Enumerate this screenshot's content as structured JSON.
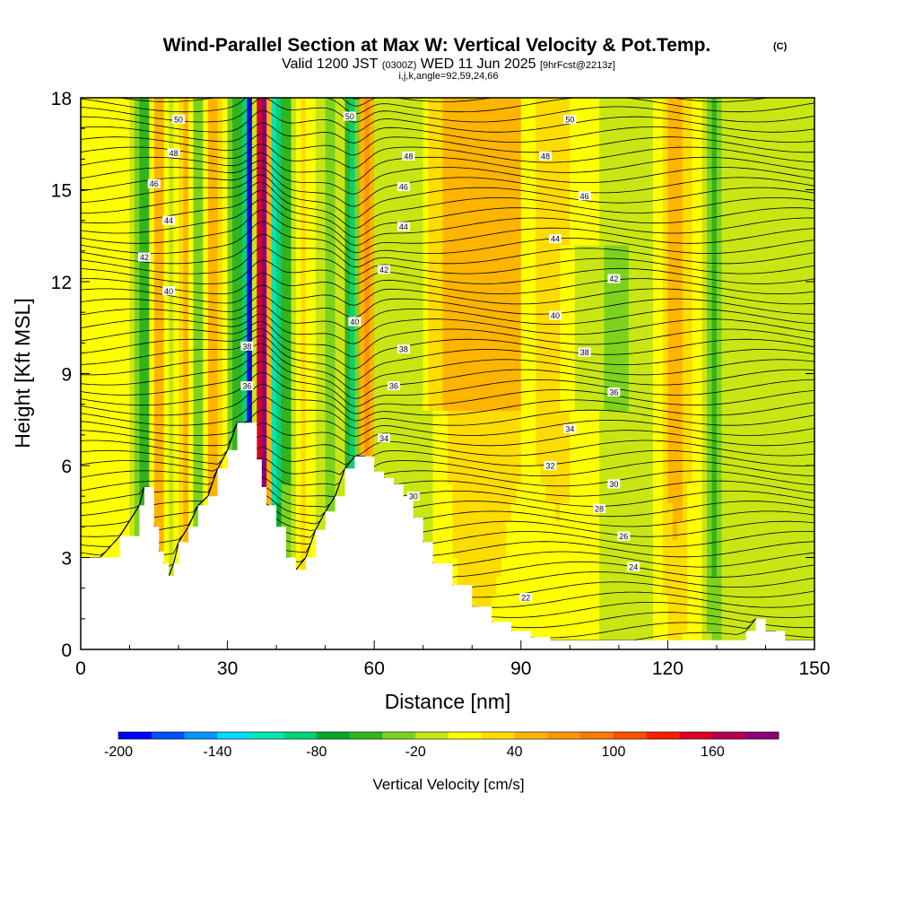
{
  "title": "Wind-Parallel Section at Max W: Vertical Velocity & Pot.Temp.",
  "copyright_mark": "(C)",
  "subtitle": {
    "valid": "Valid 1200 JST",
    "utc": "(0300Z)",
    "date": "WED 11 Jun 2025",
    "forecast": "[9hrFcst@2213z]"
  },
  "indices": "i,j,k,angle=92,59,24,66",
  "chart_data": {
    "type": "heatmap",
    "x_axis": {
      "label": "Distance [nm]",
      "range": [
        0,
        150
      ],
      "ticks": [
        0,
        30,
        60,
        90,
        120,
        150
      ]
    },
    "y_axis": {
      "label": "Height [Kft MSL]",
      "range": [
        0,
        18
      ],
      "ticks": [
        0,
        3,
        6,
        9,
        12,
        15,
        18
      ]
    },
    "colorbar": {
      "label": "Vertical Velocity [cm/s]",
      "tick_labels": [
        "-200",
        "-140",
        "-80",
        "-20",
        "40",
        "100",
        "160"
      ],
      "tick_values": [
        -200,
        -140,
        -80,
        -20,
        40,
        100,
        160
      ],
      "levels": [
        -200,
        -180,
        -160,
        -140,
        -120,
        -100,
        -80,
        -60,
        -40,
        -20,
        0,
        20,
        40,
        60,
        80,
        100,
        120,
        140,
        160,
        180,
        200
      ],
      "colors": [
        "#0000ff",
        "#0050ff",
        "#0096ff",
        "#00dcff",
        "#00e6b4",
        "#00d278",
        "#00aa28",
        "#32b41e",
        "#7dd21e",
        "#c8e614",
        "#ffff00",
        "#ffdc00",
        "#ffb400",
        "#ff9600",
        "#ff7800",
        "#ff5000",
        "#ff1e00",
        "#dc0028",
        "#b40050",
        "#8c0078"
      ]
    },
    "theta_contour_labels": [
      {
        "text": "50",
        "x": 20,
        "y": 17.3
      },
      {
        "text": "48",
        "x": 19,
        "y": 16.2
      },
      {
        "text": "46",
        "x": 15,
        "y": 15.2
      },
      {
        "text": "44",
        "x": 18,
        "y": 14.0
      },
      {
        "text": "42",
        "x": 13,
        "y": 12.8
      },
      {
        "text": "40",
        "x": 18,
        "y": 11.7
      },
      {
        "text": "38",
        "x": 34,
        "y": 9.9
      },
      {
        "text": "36",
        "x": 34,
        "y": 8.6
      },
      {
        "text": "50",
        "x": 55,
        "y": 17.4
      },
      {
        "text": "48",
        "x": 67,
        "y": 16.1
      },
      {
        "text": "46",
        "x": 66,
        "y": 15.1
      },
      {
        "text": "44",
        "x": 66,
        "y": 13.8
      },
      {
        "text": "42",
        "x": 62,
        "y": 12.4
      },
      {
        "text": "40",
        "x": 56,
        "y": 10.7
      },
      {
        "text": "38",
        "x": 66,
        "y": 9.8
      },
      {
        "text": "36",
        "x": 64,
        "y": 8.6
      },
      {
        "text": "34",
        "x": 62,
        "y": 6.9
      },
      {
        "text": "30",
        "x": 68,
        "y": 5.0
      },
      {
        "text": "50",
        "x": 100,
        "y": 17.3
      },
      {
        "text": "48",
        "x": 95,
        "y": 16.1
      },
      {
        "text": "46",
        "x": 103,
        "y": 14.8
      },
      {
        "text": "44",
        "x": 97,
        "y": 13.4
      },
      {
        "text": "42",
        "x": 109,
        "y": 12.1
      },
      {
        "text": "40",
        "x": 97,
        "y": 10.9
      },
      {
        "text": "38",
        "x": 103,
        "y": 9.7
      },
      {
        "text": "36",
        "x": 109,
        "y": 8.4
      },
      {
        "text": "34",
        "x": 100,
        "y": 7.2
      },
      {
        "text": "32",
        "x": 96,
        "y": 6.0
      },
      {
        "text": "30",
        "x": 109,
        "y": 5.4
      },
      {
        "text": "28",
        "x": 106,
        "y": 4.6
      },
      {
        "text": "26",
        "x": 111,
        "y": 3.7
      },
      {
        "text": "24",
        "x": 113,
        "y": 2.7
      },
      {
        "text": "22",
        "x": 91,
        "y": 1.7
      }
    ],
    "terrain_height_kft": {
      "x": [
        0,
        4,
        8,
        12,
        13,
        14,
        15,
        16,
        17,
        18,
        19,
        20,
        22,
        24,
        26,
        28,
        30,
        32,
        34,
        36,
        37,
        38,
        40,
        42,
        44,
        46,
        48,
        50,
        52,
        54,
        56,
        58,
        60,
        62,
        64,
        66,
        68,
        70,
        72,
        76,
        80,
        84,
        88,
        92,
        96,
        100,
        104,
        108,
        112,
        116,
        120,
        124,
        128,
        132,
        136,
        138,
        140,
        142,
        144,
        146,
        148,
        150
      ],
      "height": [
        3.0,
        3.0,
        3.7,
        4.7,
        5.3,
        5.3,
        4.0,
        3.2,
        2.8,
        2.4,
        2.8,
        3.5,
        4.0,
        4.7,
        5.0,
        5.9,
        6.5,
        7.4,
        7.4,
        6.2,
        5.3,
        4.7,
        4.0,
        3.0,
        2.6,
        3.0,
        3.9,
        4.5,
        5.0,
        5.9,
        6.3,
        6.3,
        5.8,
        5.6,
        5.4,
        5.0,
        4.3,
        3.5,
        2.8,
        2.1,
        1.4,
        0.9,
        0.6,
        0.4,
        0.3,
        0.3,
        0.3,
        0.3,
        0.3,
        0.3,
        0.3,
        0.3,
        0.3,
        0.3,
        0.6,
        1.0,
        0.6,
        0.6,
        0.3,
        0.3,
        0.3,
        0.3
      ]
    }
  }
}
